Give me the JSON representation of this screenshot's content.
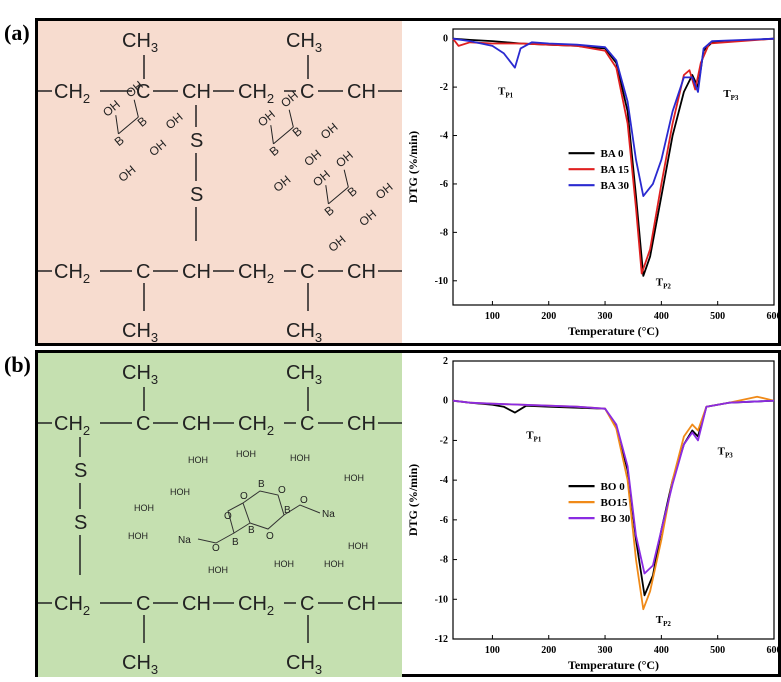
{
  "panels": [
    {
      "label": "(a)",
      "structure": {
        "background": "#f7dccf",
        "methyl": "CH",
        "methyl_sub": "3",
        "backbone_top": [
          "CH",
          "C",
          "CH",
          "CH",
          "C",
          "CH"
        ],
        "ch2": "CH",
        "ch2_sub": "2",
        "sulfur": "S",
        "boron": "B",
        "hydroxyl": "OH"
      }
    },
    {
      "label": "(b)",
      "structure": {
        "background": "#c5e0b0",
        "methyl": "CH",
        "methyl_sub": "3",
        "ch2": "CH",
        "ch2_sub": "2",
        "sulfur": "S",
        "boron": "B",
        "oxygen": "O",
        "sodium": "Na",
        "water_h": "H",
        "water_o": "O"
      }
    }
  ],
  "chart_data": [
    {
      "type": "line",
      "xlabel": "Temperature (°C)",
      "ylabel": "DTG (%/min)",
      "xlim": [
        30,
        600
      ],
      "ylim": [
        -11,
        0.4
      ],
      "xticks": [
        100,
        200,
        300,
        400,
        500,
        600
      ],
      "yticks": [
        0,
        -2,
        -4,
        -6,
        -8,
        -10
      ],
      "legend_position": "center-right",
      "annotations": [
        {
          "text": "T",
          "sub": "P1",
          "x": 110,
          "y": -2.3
        },
        {
          "text": "T",
          "sub": "P2",
          "x": 390,
          "y": -10.2
        },
        {
          "text": "T",
          "sub": "P3",
          "x": 510,
          "y": -2.4
        }
      ],
      "series": [
        {
          "name": "BA 0",
          "color": "#000000",
          "points": [
            [
              30,
              0
            ],
            [
              60,
              -0.05
            ],
            [
              100,
              -0.1
            ],
            [
              150,
              -0.2
            ],
            [
              200,
              -0.25
            ],
            [
              250,
              -0.3
            ],
            [
              270,
              -0.35
            ],
            [
              300,
              -0.4
            ],
            [
              320,
              -1.0
            ],
            [
              340,
              -3.0
            ],
            [
              355,
              -6.5
            ],
            [
              368,
              -9.8
            ],
            [
              380,
              -9.0
            ],
            [
              400,
              -6.5
            ],
            [
              420,
              -4.0
            ],
            [
              440,
              -2.2
            ],
            [
              455,
              -1.5
            ],
            [
              465,
              -2.0
            ],
            [
              475,
              -0.5
            ],
            [
              490,
              -0.15
            ],
            [
              520,
              -0.1
            ],
            [
              600,
              0
            ]
          ]
        },
        {
          "name": "BA 15",
          "color": "#e02020",
          "points": [
            [
              30,
              0
            ],
            [
              40,
              -0.3
            ],
            [
              60,
              -0.15
            ],
            [
              100,
              -0.2
            ],
            [
              150,
              -0.2
            ],
            [
              200,
              -0.25
            ],
            [
              250,
              -0.3
            ],
            [
              300,
              -0.5
            ],
            [
              320,
              -1.2
            ],
            [
              340,
              -3.5
            ],
            [
              355,
              -7.0
            ],
            [
              365,
              -9.7
            ],
            [
              380,
              -8.7
            ],
            [
              400,
              -6.0
            ],
            [
              420,
              -3.5
            ],
            [
              440,
              -1.5
            ],
            [
              450,
              -1.3
            ],
            [
              460,
              -2.1
            ],
            [
              470,
              -1.0
            ],
            [
              485,
              -0.2
            ],
            [
              600,
              0
            ]
          ]
        },
        {
          "name": "BA 30",
          "color": "#2a2ad0",
          "points": [
            [
              30,
              0
            ],
            [
              60,
              -0.1
            ],
            [
              100,
              -0.3
            ],
            [
              120,
              -0.6
            ],
            [
              140,
              -1.2
            ],
            [
              150,
              -0.4
            ],
            [
              170,
              -0.15
            ],
            [
              200,
              -0.2
            ],
            [
              250,
              -0.25
            ],
            [
              300,
              -0.35
            ],
            [
              320,
              -0.9
            ],
            [
              340,
              -2.6
            ],
            [
              355,
              -5.0
            ],
            [
              368,
              -6.5
            ],
            [
              385,
              -6.0
            ],
            [
              400,
              -5.0
            ],
            [
              420,
              -3.0
            ],
            [
              440,
              -1.6
            ],
            [
              455,
              -1.6
            ],
            [
              465,
              -2.2
            ],
            [
              475,
              -0.4
            ],
            [
              490,
              -0.1
            ],
            [
              600,
              0
            ]
          ]
        }
      ]
    },
    {
      "type": "line",
      "xlabel": "Temperature (°C)",
      "ylabel": "DTG (%/min)",
      "xlim": [
        30,
        600
      ],
      "ylim": [
        -12,
        2
      ],
      "xticks": [
        100,
        200,
        300,
        400,
        500,
        600
      ],
      "yticks": [
        2,
        0,
        -2,
        -4,
        -6,
        -8,
        -10,
        -12
      ],
      "legend_position": "center-right",
      "annotations": [
        {
          "text": "T",
          "sub": "P1",
          "x": 160,
          "y": -1.9
        },
        {
          "text": "T",
          "sub": "P2",
          "x": 390,
          "y": -11.2
        },
        {
          "text": "T",
          "sub": "P3",
          "x": 500,
          "y": -2.7
        }
      ],
      "series": [
        {
          "name": "BO 0",
          "color": "#000000",
          "points": [
            [
              30,
              0
            ],
            [
              60,
              -0.1
            ],
            [
              100,
              -0.2
            ],
            [
              120,
              -0.3
            ],
            [
              140,
              -0.6
            ],
            [
              160,
              -0.25
            ],
            [
              200,
              -0.3
            ],
            [
              250,
              -0.35
            ],
            [
              300,
              -0.4
            ],
            [
              320,
              -1.3
            ],
            [
              340,
              -3.5
            ],
            [
              355,
              -7.0
            ],
            [
              370,
              -9.8
            ],
            [
              385,
              -8.8
            ],
            [
              400,
              -6.5
            ],
            [
              420,
              -4.0
            ],
            [
              440,
              -2.2
            ],
            [
              455,
              -1.5
            ],
            [
              465,
              -1.8
            ],
            [
              480,
              -0.3
            ],
            [
              520,
              -0.1
            ],
            [
              600,
              0
            ]
          ]
        },
        {
          "name": "BO15",
          "color": "#f08a18",
          "points": [
            [
              30,
              0
            ],
            [
              60,
              -0.1
            ],
            [
              100,
              -0.15
            ],
            [
              150,
              -0.2
            ],
            [
              200,
              -0.25
            ],
            [
              250,
              -0.3
            ],
            [
              300,
              -0.4
            ],
            [
              320,
              -1.4
            ],
            [
              340,
              -4.0
            ],
            [
              355,
              -8.0
            ],
            [
              368,
              -10.5
            ],
            [
              380,
              -9.6
            ],
            [
              400,
              -7.0
            ],
            [
              420,
              -4.0
            ],
            [
              440,
              -1.8
            ],
            [
              455,
              -1.2
            ],
            [
              465,
              -1.5
            ],
            [
              480,
              -0.3
            ],
            [
              520,
              -0.1
            ],
            [
              570,
              0.2
            ],
            [
              600,
              0
            ]
          ]
        },
        {
          "name": "BO 30",
          "color": "#8a2be2",
          "points": [
            [
              30,
              0
            ],
            [
              60,
              -0.1
            ],
            [
              100,
              -0.15
            ],
            [
              150,
              -0.2
            ],
            [
              200,
              -0.25
            ],
            [
              250,
              -0.3
            ],
            [
              300,
              -0.4
            ],
            [
              320,
              -1.2
            ],
            [
              340,
              -3.3
            ],
            [
              355,
              -6.8
            ],
            [
              370,
              -8.7
            ],
            [
              385,
              -8.3
            ],
            [
              400,
              -6.5
            ],
            [
              420,
              -4.2
            ],
            [
              440,
              -2.2
            ],
            [
              455,
              -1.6
            ],
            [
              465,
              -2.0
            ],
            [
              480,
              -0.3
            ],
            [
              520,
              -0.1
            ],
            [
              600,
              0
            ]
          ]
        }
      ]
    }
  ]
}
